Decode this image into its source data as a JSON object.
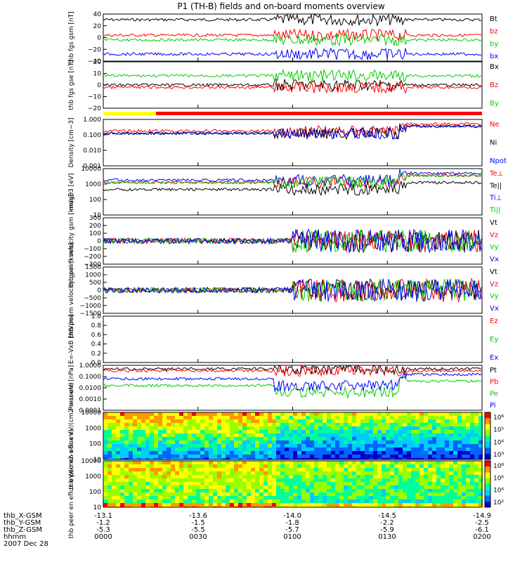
{
  "title": "P1 (TH-B) fields and on-board moments overview",
  "time_axis": {
    "ticks": [
      "0000",
      "0030",
      "0100",
      "0130",
      "0200"
    ],
    "rows": [
      {
        "label": "thb_X-GSM",
        "values": [
          "-13.1",
          "-13.6",
          "-14.0",
          "-14.5",
          "-14.9"
        ]
      },
      {
        "label": "thb_Y-GSM",
        "values": [
          "-1.2",
          "-1.5",
          "-1.8",
          "-2.2",
          "-2.5"
        ]
      },
      {
        "label": "thb_Z-GSM",
        "values": [
          "-5.3",
          "-5.5",
          "-5.7",
          "-5.9",
          "-6.1"
        ]
      },
      {
        "label": "hhmm",
        "values": []
      }
    ],
    "date": "2007 Dec 28"
  },
  "chart_data": [
    {
      "type": "line",
      "ylabel": "thb fgs gsm [nT]",
      "yticks": [
        "40",
        "20",
        "0",
        "−20",
        "−40"
      ],
      "ylim": [
        -40,
        40
      ],
      "series": [
        {
          "name": "Bt",
          "color": "#000000"
        },
        {
          "name": "bz",
          "color": "#ff0000"
        },
        {
          "name": "by",
          "color": "#00cc00"
        },
        {
          "name": "bx",
          "color": "#0000ff"
        }
      ]
    },
    {
      "type": "line",
      "ylabel": "thb fgs gse [nT]",
      "yticks": [
        "20",
        "10",
        "0",
        "−10",
        "−20"
      ],
      "ylim": [
        -20,
        20
      ],
      "series": [
        {
          "name": "Bx",
          "color": "#000000"
        },
        {
          "name": "Bz",
          "color": "#ff0000"
        },
        {
          "name": "By",
          "color": "#00cc00"
        }
      ]
    },
    {
      "type": "line",
      "ylabel": "Density [cm−3]",
      "yticks": [
        "1.000",
        "0.100",
        "0.010",
        "0.001"
      ],
      "scale": "log",
      "series": [
        {
          "name": "Ne",
          "color": "#ff0000"
        },
        {
          "name": "Ni",
          "color": "#000000"
        },
        {
          "name": "Npot",
          "color": "#0000ff"
        }
      ]
    },
    {
      "type": "line",
      "ylabel": "magθ3 [eV]",
      "yticks": [
        "10000",
        "1000",
        "100",
        "10"
      ],
      "scale": "log",
      "series": [
        {
          "name": "Te⊥",
          "color": "#ff0000"
        },
        {
          "name": "Te||",
          "color": "#000000"
        },
        {
          "name": "Ti⊥",
          "color": "#0000ff"
        },
        {
          "name": "Ti||",
          "color": "#00cc00"
        }
      ]
    },
    {
      "type": "line",
      "ylabel": "thb peim velocity gsm [km/s]",
      "yticks": [
        "300",
        "200",
        "100",
        "0",
        "−100",
        "−200",
        "−300"
      ],
      "ylim": [
        -300,
        300
      ],
      "series": [
        {
          "name": "Vt",
          "color": "#000000"
        },
        {
          "name": "Vz",
          "color": "#ff0000"
        },
        {
          "name": "Vy",
          "color": "#00cc00"
        },
        {
          "name": "Vx",
          "color": "#0000ff"
        }
      ]
    },
    {
      "type": "line",
      "ylabel": "thb peem velocity gsm [km/s]",
      "yticks": [
        "1500",
        "1000",
        "500",
        "0",
        "−500",
        "−1000",
        "−1500"
      ],
      "ylim": [
        -1500,
        1500
      ],
      "series": [
        {
          "name": "Vt",
          "color": "#000000"
        },
        {
          "name": "Vz",
          "color": "#ff0000"
        },
        {
          "name": "Vy",
          "color": "#00cc00"
        },
        {
          "name": "Vx",
          "color": "#0000ff"
        }
      ]
    },
    {
      "type": "line",
      "ylabel": "E=-VxB [mV/m]",
      "yticks": [
        "1.0",
        "0.8",
        "0.6",
        "0.4",
        "0.2",
        "0.0"
      ],
      "ylim": [
        0,
        1
      ],
      "series": [
        {
          "name": "Ez",
          "color": "#ff0000"
        },
        {
          "name": "Ey",
          "color": "#00cc00"
        },
        {
          "name": "Ex",
          "color": "#0000ff"
        }
      ]
    },
    {
      "type": "line",
      "ylabel": "Pressure [nPa]",
      "yticks": [
        "1.0000",
        "0.1000",
        "0.0100",
        "0.0010",
        "0.0001"
      ],
      "scale": "log",
      "series": [
        {
          "name": "Pt",
          "color": "#000000"
        },
        {
          "name": "Pb",
          "color": "#ff0000"
        },
        {
          "name": "Pe",
          "color": "#00cc00"
        },
        {
          "name": "Pi",
          "color": "#0000ff"
        }
      ]
    },
    {
      "type": "heatmap",
      "ylabel": "thb peir en eflux eV/(cm2-s-sr-eV)",
      "yticks": [
        "10000",
        "1000",
        "100",
        "10"
      ],
      "scale": "log",
      "colorbar": [
        "10⁶",
        "10⁵",
        "10⁴",
        "10³"
      ]
    },
    {
      "type": "heatmap",
      "ylabel": "thb peer en eflux eV/(cm2-s-sr-eV)",
      "yticks": [
        "10000",
        "1000",
        "100",
        "10"
      ],
      "scale": "log",
      "colorbar": [
        "10⁸",
        "10⁶",
        "10⁴",
        "10²"
      ]
    }
  ]
}
